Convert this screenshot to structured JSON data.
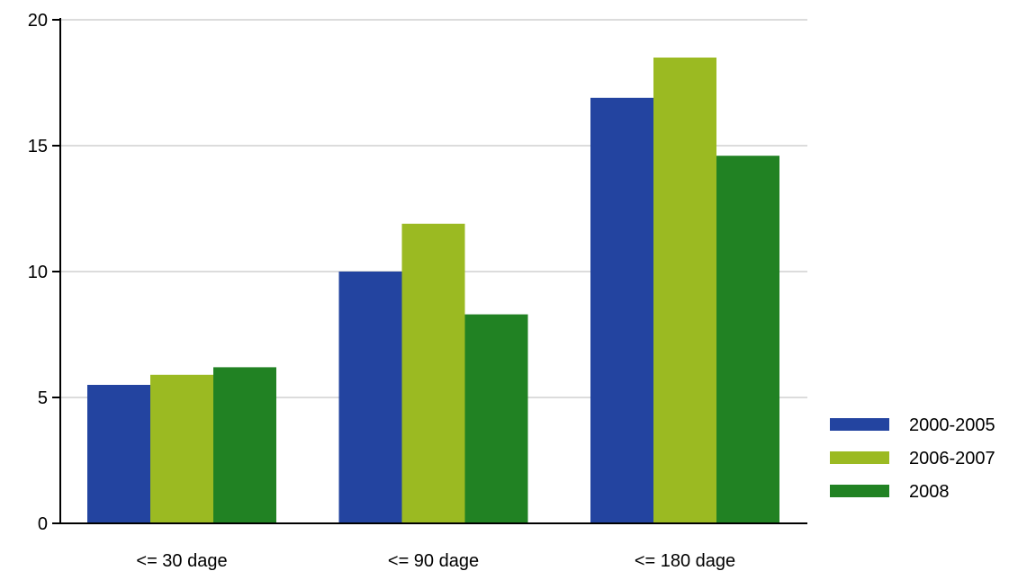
{
  "chart_data": {
    "type": "bar",
    "categories": [
      "<= 30 dage",
      "<= 90 dage",
      "<= 180 dage"
    ],
    "series": [
      {
        "name": "2000-2005",
        "color": "#2344a0",
        "values": [
          5.5,
          10.0,
          16.9
        ]
      },
      {
        "name": "2006-2007",
        "color": "#9bba22",
        "values": [
          5.9,
          11.9,
          18.5
        ]
      },
      {
        "name": "2008",
        "color": "#218223",
        "values": [
          6.2,
          8.3,
          14.6
        ]
      }
    ],
    "ylim": [
      0,
      20
    ],
    "yticks": [
      "0",
      "5",
      "10",
      "15",
      "20"
    ],
    "grid": true,
    "legend": "right"
  }
}
